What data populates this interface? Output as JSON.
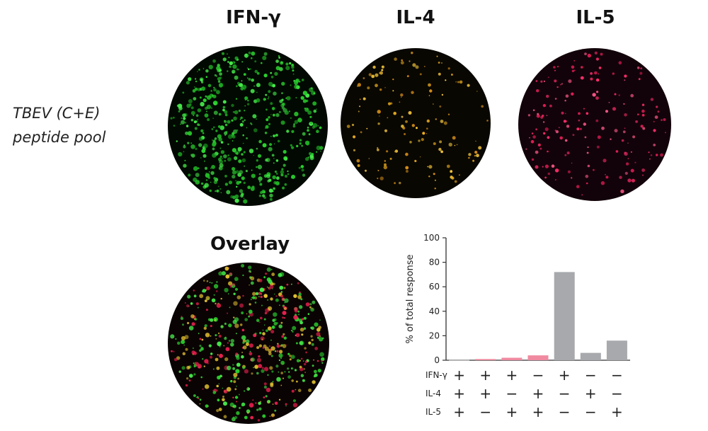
{
  "panels": {
    "titles": [
      "IFN-γ",
      "IL-4",
      "IL-5"
    ],
    "overlay_title": "Overlay",
    "row_label_line1": "TBEV (C+E)",
    "row_label_line2": "peptide pool"
  },
  "wells": [
    {
      "name": "ifng",
      "spot_colors": [
        "#2bd12e",
        "#46e84a",
        "#1fb024"
      ],
      "bg": "#020902"
    },
    {
      "name": "il4",
      "spot_colors": [
        "#f0b020",
        "#ffd040",
        "#d89018"
      ],
      "bg": "#090702"
    },
    {
      "name": "il5",
      "spot_colors": [
        "#ff2d6a",
        "#e01e55",
        "#ff5a8a"
      ],
      "bg": "#12030a"
    },
    {
      "name": "overlay",
      "spot_colors": [
        "#2bd12e",
        "#46e84a",
        "#e8204f",
        "#e0c030"
      ],
      "bg": "#0a0303"
    }
  ],
  "chart_data": {
    "type": "bar",
    "ylabel": "% of total response",
    "ylim": [
      0,
      100
    ],
    "yticks": [
      0,
      20,
      40,
      60,
      80,
      100
    ],
    "row_labels": [
      "IFN-γ",
      "IL-4",
      "IL-5"
    ],
    "categories": [
      {
        "IFN-γ": "+",
        "IL-4": "+",
        "IL-5": "+"
      },
      {
        "IFN-γ": "+",
        "IL-4": "+",
        "IL-5": "−"
      },
      {
        "IFN-γ": "+",
        "IL-4": "−",
        "IL-5": "+"
      },
      {
        "IFN-γ": "−",
        "IL-4": "+",
        "IL-5": "+"
      },
      {
        "IFN-γ": "+",
        "IL-4": "−",
        "IL-5": "−"
      },
      {
        "IFN-γ": "−",
        "IL-4": "+",
        "IL-5": "−"
      },
      {
        "IFN-γ": "−",
        "IL-4": "−",
        "IL-5": "+"
      }
    ],
    "values": [
      0.2,
      1,
      2,
      4,
      72,
      6,
      16
    ],
    "bar_colors": [
      "#b0b0b0",
      "#f08aa0",
      "#f08aa0",
      "#f08aa0",
      "#a7a9ac",
      "#a7a9ac",
      "#a7a9ac"
    ]
  }
}
